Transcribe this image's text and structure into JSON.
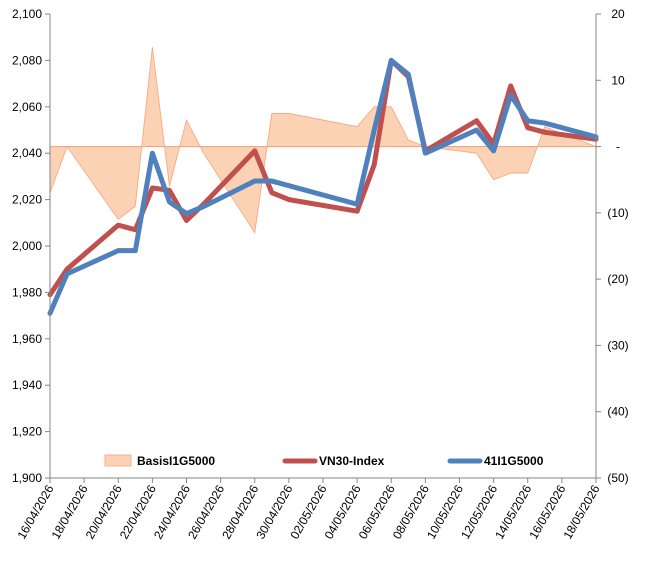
{
  "chart_data": {
    "type": "line",
    "x": [
      "16/04/2026",
      "17/04/2026",
      "20/04/2026",
      "21/04/2026",
      "22/04/2026",
      "23/04/2026",
      "24/04/2026",
      "25/04/2026",
      "28/04/2026",
      "29/04/2026",
      "30/04/2026",
      "04/05/2026",
      "05/05/2026",
      "06/05/2026",
      "07/05/2026",
      "08/05/2026",
      "11/05/2026",
      "12/05/2026",
      "13/05/2026",
      "14/05/2026",
      "15/05/2026",
      "18/05/2026"
    ],
    "x_ticks": [
      "16/04/2026",
      "18/04/2026",
      "20/04/2026",
      "22/04/2026",
      "24/04/2026",
      "26/04/2026",
      "28/04/2026",
      "30/04/2026",
      "02/05/2026",
      "04/05/2026",
      "06/05/2026",
      "08/05/2026",
      "10/05/2026",
      "12/05/2026",
      "14/05/2026",
      "16/05/2026",
      "18/05/2026"
    ],
    "x_range": [
      "16/04/2026",
      "18/05/2026"
    ],
    "y_left": {
      "min": 1900,
      "max": 2100,
      "step": 20,
      "ticks": [
        "1,900",
        "1,920",
        "1,940",
        "1,960",
        "1,980",
        "2,000",
        "2,020",
        "2,040",
        "2,060",
        "2,080",
        "2,100"
      ]
    },
    "y_right": {
      "min": -50,
      "max": 20,
      "step": 10,
      "ticks": [
        "(50)",
        "(40)",
        "(30)",
        "(20)",
        "(10)",
        "-",
        "10",
        "20"
      ]
    },
    "series": [
      {
        "name": "BasisI1G5000",
        "kind": "area",
        "axis": "right",
        "color": "#fbd2b4",
        "edge": "#f4a47e",
        "values": [
          -7,
          0,
          -11,
          -9,
          15,
          -6,
          4,
          -1,
          -13,
          5,
          5,
          3,
          6,
          6,
          1,
          0,
          -1,
          -5,
          -4,
          -4,
          3,
          0
        ]
      },
      {
        "name": "VN30-Index",
        "kind": "line",
        "axis": "left",
        "color": "#c0504d",
        "values": [
          1979,
          1990,
          2009,
          2007,
          2025,
          2024,
          2011,
          2018,
          2041,
          2023,
          2020,
          2015,
          2035,
          2080,
          2073,
          2041,
          2054,
          2044,
          2069,
          2051,
          2049,
          2046
        ]
      },
      {
        "name": "41I1G5000",
        "kind": "line",
        "axis": "left",
        "color": "#4f81bd",
        "values": [
          1971,
          1988,
          1998,
          1998,
          2040,
          2019,
          2014,
          2017,
          2028,
          2028,
          2026,
          2018,
          2050,
          2080,
          2074,
          2040,
          2050,
          2041,
          2065,
          2054,
          2053,
          2047
        ]
      }
    ],
    "legend": {
      "placement": "bottom-inside"
    },
    "grid": false
  }
}
